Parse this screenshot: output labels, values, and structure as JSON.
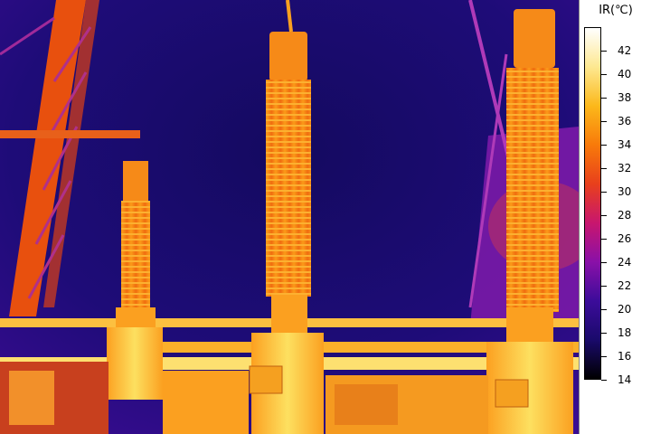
{
  "legend": {
    "title": "IR(℃)",
    "min": 14,
    "max": 44,
    "ticks": [
      42,
      40,
      38,
      36,
      34,
      32,
      30,
      28,
      26,
      24,
      22,
      20,
      18,
      16,
      14
    ],
    "palette": [
      "#000000",
      "#1a0a6b",
      "#3c0c9a",
      "#8a10a8",
      "#c8166e",
      "#e8401c",
      "#f87a0a",
      "#fcb81a",
      "#fde890",
      "#ffffff"
    ]
  }
}
